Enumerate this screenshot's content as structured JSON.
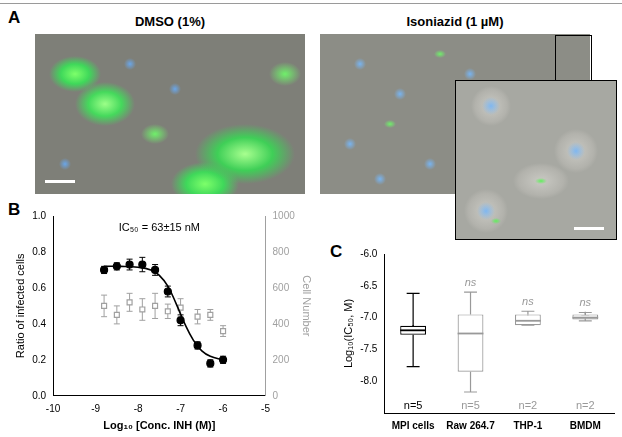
{
  "panel_labels": [
    "A",
    "B",
    "C"
  ],
  "panel_a": {
    "images": [
      "DMSO (1%)",
      "Isoniazid (1 µM)"
    ]
  },
  "chart_data": [
    {
      "type": "scatter",
      "annotation": "IC₅₀ = 63±15 nM",
      "xlabel": "Log₁₀ [Conc. INH (M)]",
      "ylabel": "Ratio of infected cells",
      "y2label": "Cell Number",
      "xlim": [
        -10,
        -5
      ],
      "xticks": [
        -10,
        -9,
        -8,
        -7,
        -6,
        -5
      ],
      "ylim": [
        0,
        1
      ],
      "yticks": [
        {
          "value": 0,
          "label": "0.0"
        },
        0.2,
        0.4,
        0.6,
        0.8,
        {
          "value": 1,
          "label": "1.0"
        }
      ],
      "y2lim": [
        0,
        1000
      ],
      "y2ticks": [
        0,
        200,
        400,
        600,
        800,
        1000
      ],
      "grid": false,
      "series": [
        {
          "type": "scatter",
          "marker": "circle",
          "color": "#000000",
          "x": [
            -8.8,
            -8.5,
            -8.2,
            -7.9,
            -7.6,
            -7.3,
            -7.0,
            -6.6,
            -6.3,
            -6.0
          ],
          "values": [
            0.7,
            0.72,
            0.73,
            0.73,
            0.7,
            0.58,
            0.42,
            0.28,
            0.18,
            0.2
          ],
          "errors": [
            0.02,
            0.02,
            0.03,
            0.04,
            0.03,
            0.03,
            0.03,
            0.02,
            0.02,
            0.02
          ]
        },
        {
          "type": "line",
          "marker": "none",
          "line_style": "solid",
          "color": "#000000",
          "x": [
            -8.8,
            -8.4,
            -8.0,
            -7.7,
            -7.5,
            -7.3,
            -7.1,
            -6.9,
            -6.7,
            -6.5,
            -6.3,
            -6.0
          ],
          "values": [
            0.72,
            0.72,
            0.715,
            0.7,
            0.67,
            0.61,
            0.51,
            0.4,
            0.31,
            0.25,
            0.22,
            0.2
          ]
        },
        {
          "type": "scatter",
          "marker": "open_square",
          "color": "#a0a0a0",
          "axis": "y2",
          "x": [
            -8.8,
            -8.5,
            -8.2,
            -7.9,
            -7.6,
            -7.3,
            -7.0,
            -6.6,
            -6.3,
            -6.0
          ],
          "values": [
            500,
            450,
            520,
            480,
            500,
            470,
            490,
            440,
            450,
            360
          ],
          "errors": [
            60,
            50,
            50,
            60,
            70,
            40,
            50,
            40,
            30,
            30
          ]
        }
      ]
    },
    {
      "type": "box",
      "ylabel": "Log₁₀(IC₅₀, M)",
      "categories": [
        "MPI cells",
        "Raw 264.7",
        "THP-1",
        "BMDM"
      ],
      "colors": [
        "#000000",
        "#999999",
        "#999999",
        "#999999"
      ],
      "ylim": [
        -8.5,
        -6.0
      ],
      "yticks": [
        {
          "value": -8,
          "label": "-8.0"
        },
        {
          "value": -7.5,
          "label": "-7.5"
        },
        {
          "value": -7,
          "label": "-7.0"
        },
        {
          "value": -6.5,
          "label": "-6.5"
        },
        {
          "value": -6,
          "label": "-6.0"
        }
      ],
      "grid": false,
      "min": [
        -7.77,
        -8.17,
        -7.12,
        -7.05
      ],
      "q1": [
        -7.27,
        -7.85,
        -7.12,
        -7.03
      ],
      "median": [
        -7.2,
        -7.25,
        -7.05,
        -7.0
      ],
      "q3": [
        -7.13,
        -6.95,
        -6.95,
        -6.95
      ],
      "max": [
        -6.62,
        -6.6,
        -6.9,
        -6.92
      ],
      "mean": [
        -7.18,
        -7.37,
        -7.02,
        -6.97
      ],
      "significance": [
        null,
        "ns",
        "ns",
        "ns"
      ],
      "n_labels": [
        "n=5",
        "n=5",
        "n=2",
        "n=2"
      ]
    }
  ]
}
